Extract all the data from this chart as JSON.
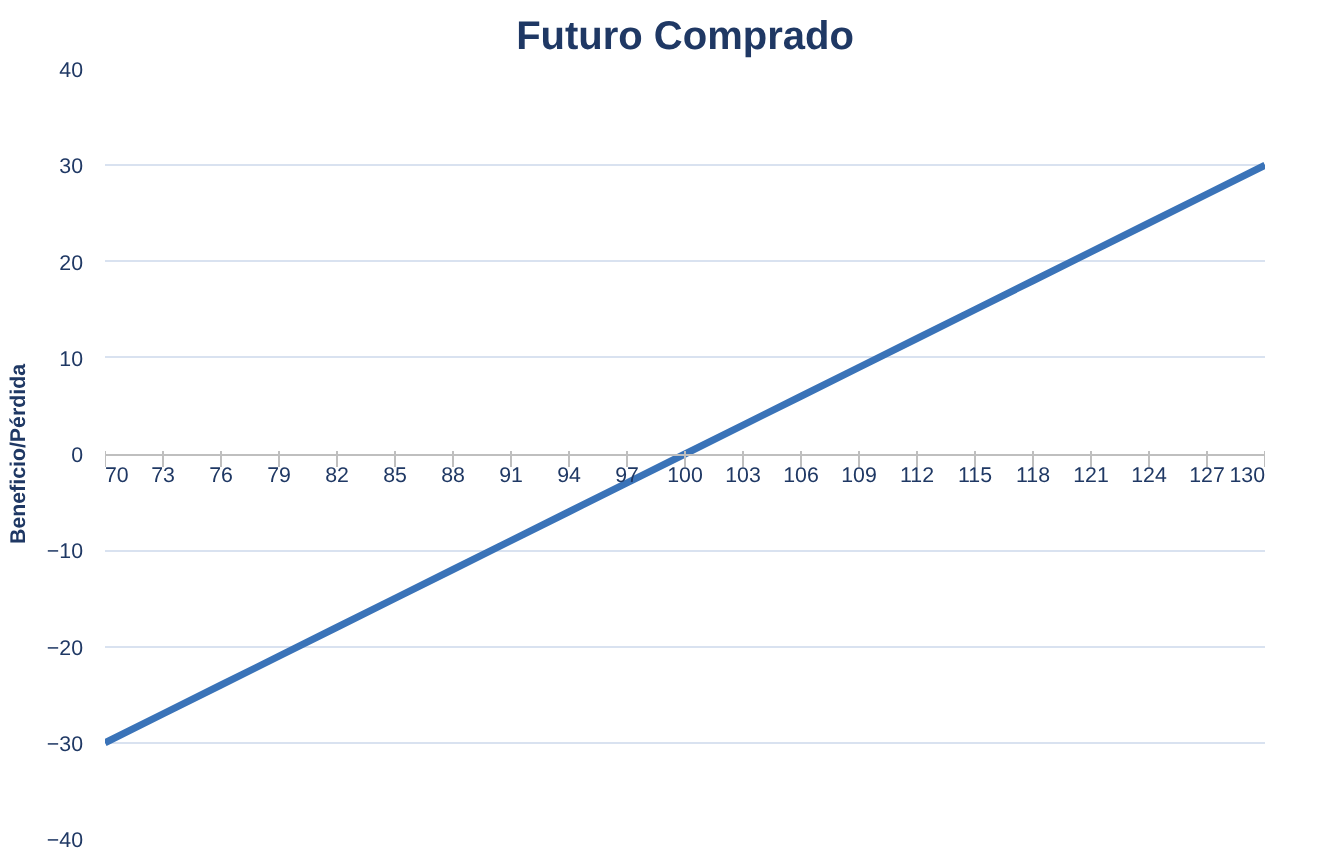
{
  "chart_data": {
    "type": "line",
    "title": "Futuro Comprado",
    "ylabel": "Beneficio/Pérdida",
    "x": [
      70,
      73,
      76,
      79,
      82,
      85,
      88,
      91,
      94,
      97,
      100,
      103,
      106,
      109,
      112,
      115,
      118,
      121,
      124,
      127,
      130
    ],
    "series": [
      {
        "color": "#3a73b8",
        "values": [
          -30,
          -27,
          -24,
          -21,
          -18,
          -15,
          -12,
          -9,
          -6,
          -3,
          0,
          3,
          6,
          9,
          12,
          15,
          18,
          21,
          24,
          27,
          30
        ]
      }
    ],
    "xlim": [
      70,
      130
    ],
    "xticks": [
      70,
      73,
      76,
      79,
      82,
      85,
      88,
      91,
      94,
      97,
      100,
      103,
      106,
      109,
      112,
      115,
      118,
      121,
      124,
      127,
      130
    ],
    "ylim": [
      -40,
      40
    ],
    "yticks": [
      -40,
      -30,
      -20,
      -10,
      0,
      10,
      20,
      30,
      40
    ],
    "grid": "y",
    "marker": "none",
    "line_style": "solid"
  }
}
